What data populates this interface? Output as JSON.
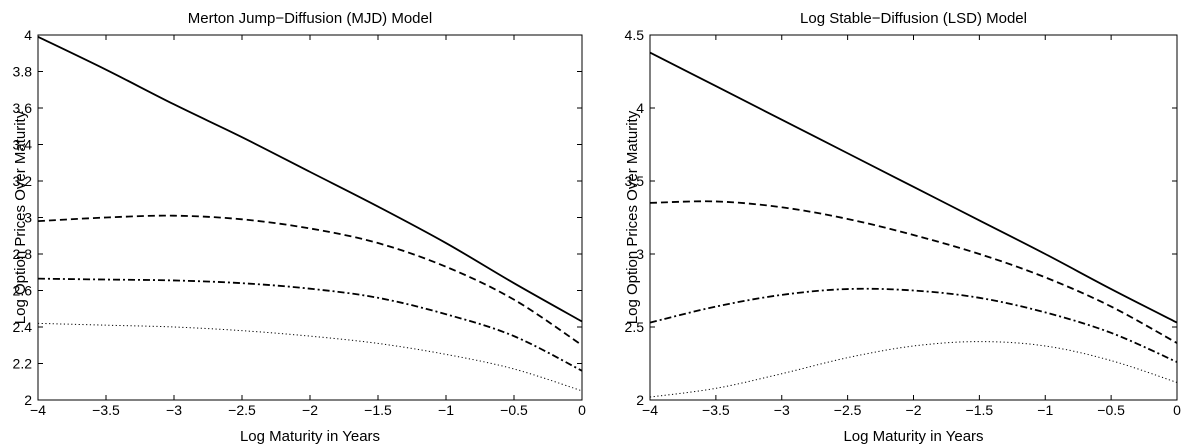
{
  "chart_data": [
    {
      "type": "line",
      "title": "Merton Jump−Diffusion (MJD) Model",
      "xlabel": "Log Maturity in Years",
      "ylabel": "Log Option Prices Over Maturity",
      "xlim": [
        -4,
        0
      ],
      "ylim": [
        2,
        4
      ],
      "x_ticks": [
        "−4",
        "−3.5",
        "−3",
        "−2.5",
        "−2",
        "−1.5",
        "−1",
        "−0.5",
        "0"
      ],
      "y_ticks": [
        "2",
        "2.2",
        "2.4",
        "2.6",
        "2.8",
        "3",
        "3.2",
        "3.4",
        "3.6",
        "3.8",
        "4"
      ],
      "grid": false,
      "series": [
        {
          "style": "solid",
          "x": [
            -4,
            -3.5,
            -3,
            -2.5,
            -2,
            -1.5,
            -1,
            -0.5,
            0
          ],
          "values": [
            3.99,
            3.81,
            3.62,
            3.44,
            3.25,
            3.06,
            2.86,
            2.64,
            2.43
          ]
        },
        {
          "style": "dashed",
          "x": [
            -4,
            -3.5,
            -3,
            -2.5,
            -2,
            -1.5,
            -1,
            -0.5,
            0
          ],
          "values": [
            2.98,
            3.0,
            3.01,
            2.99,
            2.94,
            2.86,
            2.73,
            2.55,
            2.3
          ]
        },
        {
          "style": "dashdot",
          "x": [
            -4,
            -3.5,
            -3,
            -2.5,
            -2,
            -1.5,
            -1,
            -0.5,
            0
          ],
          "values": [
            2.665,
            2.66,
            2.655,
            2.64,
            2.61,
            2.56,
            2.47,
            2.35,
            2.16
          ]
        },
        {
          "style": "dotted",
          "x": [
            -4,
            -3.5,
            -3,
            -2.5,
            -2,
            -1.5,
            -1,
            -0.5,
            0
          ],
          "values": [
            2.42,
            2.41,
            2.4,
            2.38,
            2.35,
            2.31,
            2.25,
            2.17,
            2.05
          ]
        }
      ]
    },
    {
      "type": "line",
      "title": "Log Stable−Diffusion (LSD) Model",
      "xlabel": "Log Maturity in Years",
      "ylabel": "Log Option Prices Over Maturity",
      "xlim": [
        -4,
        0
      ],
      "ylim": [
        2,
        4.5
      ],
      "x_ticks": [
        "−4",
        "−3.5",
        "−3",
        "−2.5",
        "−2",
        "−1.5",
        "−1",
        "−0.5",
        "0"
      ],
      "y_ticks": [
        "2",
        "2.5",
        "3",
        "3.5",
        "4",
        "4.5"
      ],
      "grid": false,
      "series": [
        {
          "style": "solid",
          "x": [
            -4,
            -3.5,
            -3,
            -2.5,
            -2,
            -1.5,
            -1,
            -0.5,
            0
          ],
          "values": [
            4.38,
            4.15,
            3.92,
            3.69,
            3.46,
            3.23,
            3.0,
            2.76,
            2.53
          ]
        },
        {
          "style": "dashed",
          "x": [
            -4,
            -3.5,
            -3,
            -2.5,
            -2,
            -1.5,
            -1,
            -0.5,
            0
          ],
          "values": [
            3.35,
            3.36,
            3.32,
            3.24,
            3.13,
            3.0,
            2.84,
            2.64,
            2.39
          ]
        },
        {
          "style": "dashdot",
          "x": [
            -4,
            -3.5,
            -3,
            -2.5,
            -2,
            -1.5,
            -1,
            -0.5,
            0
          ],
          "values": [
            2.53,
            2.64,
            2.72,
            2.76,
            2.75,
            2.7,
            2.6,
            2.46,
            2.26
          ]
        },
        {
          "style": "dotted",
          "x": [
            -4,
            -3.5,
            -3,
            -2.5,
            -2,
            -1.5,
            -1,
            -0.5,
            0
          ],
          "values": [
            2.02,
            2.08,
            2.18,
            2.29,
            2.37,
            2.4,
            2.37,
            2.27,
            2.12
          ]
        }
      ]
    }
  ]
}
